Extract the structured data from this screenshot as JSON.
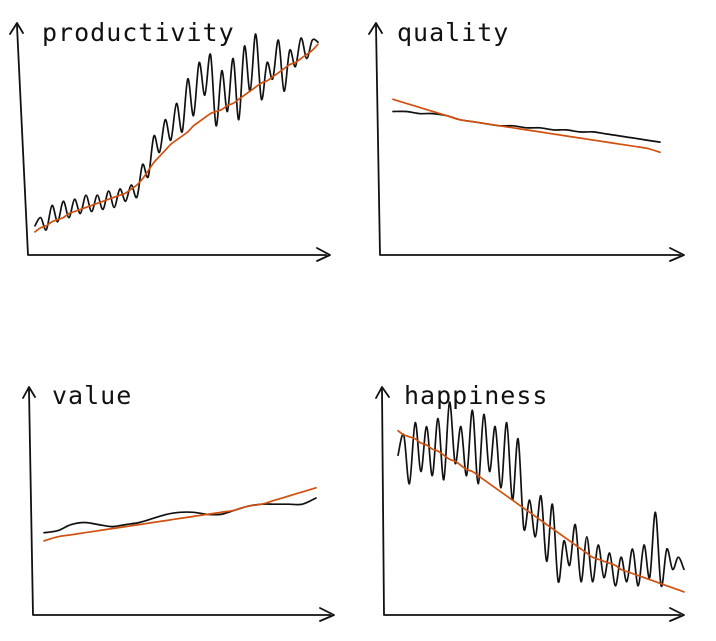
{
  "colors": {
    "ink": "#111111",
    "trend": "#D2500E",
    "background": "#ffffff"
  },
  "chart_data": [
    {
      "type": "line",
      "title": "productivity",
      "xlabel": "",
      "ylabel": "",
      "axes": "arrows, no ticks",
      "grid": false,
      "legend": "none",
      "ylim": [
        0,
        100
      ],
      "x": [
        0,
        2,
        4,
        6,
        8,
        10,
        12,
        14,
        16,
        18,
        20,
        22,
        24,
        26,
        28,
        30,
        32,
        34,
        36,
        38,
        40,
        42,
        44,
        46,
        48,
        50,
        52,
        54,
        56,
        58,
        60,
        62,
        64,
        66,
        68,
        70,
        72,
        74,
        76,
        78,
        80,
        82,
        84,
        86,
        88,
        90,
        92,
        94,
        96,
        98,
        100
      ],
      "series": [
        {
          "values": [
            6,
            10,
            4,
            16,
            8,
            18,
            10,
            19,
            12,
            21,
            13,
            21,
            14,
            23,
            15,
            24,
            18,
            26,
            20,
            36,
            30,
            50,
            42,
            58,
            48,
            66,
            52,
            78,
            60,
            86,
            70,
            90,
            55,
            82,
            62,
            88,
            58,
            94,
            72,
            100,
            68,
            86,
            78,
            97,
            72,
            92,
            84,
            98,
            88,
            97,
            96
          ]
        },
        {
          "values": [
            3,
            5,
            6,
            8,
            9,
            10,
            12,
            13,
            14,
            15,
            16,
            17,
            18,
            19,
            20,
            21,
            22,
            24,
            26,
            29,
            33,
            37,
            40,
            43,
            46,
            48,
            50,
            52,
            55,
            57,
            59,
            61,
            62,
            63,
            65,
            66,
            68,
            70,
            72,
            74,
            76,
            77,
            79,
            81,
            83,
            85,
            86,
            88,
            90,
            92,
            95
          ]
        }
      ]
    },
    {
      "type": "line",
      "title": "quality",
      "xlabel": "",
      "ylabel": "",
      "axes": "arrows, no ticks",
      "grid": false,
      "legend": "none",
      "ylim": [
        0,
        100
      ],
      "x": [
        0,
        5,
        10,
        15,
        20,
        25,
        30,
        35,
        40,
        45,
        50,
        55,
        60,
        65,
        70,
        75,
        80,
        85,
        90,
        95,
        100
      ],
      "series": [
        {
          "values": [
            62,
            62,
            61,
            61,
            60,
            58,
            57,
            56,
            55,
            55,
            54,
            54,
            53,
            53,
            52,
            52,
            51,
            50,
            49,
            48,
            47
          ]
        },
        {
          "values": [
            68,
            66,
            64,
            62,
            60,
            58,
            57,
            56,
            55,
            54,
            53,
            52,
            51,
            50,
            49,
            48,
            47,
            46,
            45,
            44,
            42
          ]
        }
      ]
    },
    {
      "type": "line",
      "title": "value",
      "xlabel": "",
      "ylabel": "",
      "axes": "arrows, no ticks",
      "grid": false,
      "legend": "none",
      "ylim": [
        0,
        100
      ],
      "x": [
        0,
        5,
        10,
        15,
        20,
        25,
        30,
        35,
        40,
        45,
        50,
        55,
        60,
        65,
        70,
        75,
        80,
        85,
        90,
        95,
        100
      ],
      "series": [
        {
          "values": [
            32,
            33,
            36,
            37,
            36,
            35,
            36,
            37,
            39,
            41,
            42,
            42,
            41,
            41,
            43,
            45,
            46,
            46,
            46,
            46,
            49
          ]
        },
        {
          "values": [
            28,
            30,
            31,
            32,
            33,
            34,
            35,
            36,
            37,
            38,
            39,
            40,
            41,
            42,
            43,
            45,
            46,
            48,
            50,
            52,
            54
          ]
        }
      ]
    },
    {
      "type": "line",
      "title": "happiness",
      "xlabel": "",
      "ylabel": "",
      "axes": "arrows, no ticks",
      "grid": false,
      "legend": "none",
      "ylim": [
        0,
        100
      ],
      "x": [
        0,
        2,
        4,
        6,
        8,
        10,
        12,
        14,
        16,
        18,
        20,
        22,
        24,
        26,
        28,
        30,
        32,
        34,
        36,
        38,
        40,
        42,
        44,
        46,
        48,
        50,
        52,
        54,
        56,
        58,
        60,
        62,
        64,
        66,
        68,
        70,
        72,
        74,
        76,
        78,
        80,
        82,
        84,
        86,
        88,
        90,
        92,
        94,
        96,
        98,
        100
      ],
      "series": [
        {
          "values": [
            70,
            80,
            56,
            86,
            62,
            84,
            60,
            88,
            58,
            96,
            66,
            84,
            60,
            92,
            56,
            90,
            62,
            84,
            54,
            86,
            48,
            78,
            34,
            48,
            30,
            50,
            18,
            46,
            8,
            28,
            16,
            36,
            8,
            30,
            8,
            26,
            10,
            22,
            6,
            20,
            8,
            24,
            6,
            26,
            10,
            42,
            6,
            24,
            14,
            20,
            14
          ]
        },
        {
          "values": [
            82,
            80,
            79,
            78,
            76,
            75,
            73,
            72,
            70,
            68,
            67,
            65,
            63,
            62,
            60,
            58,
            56,
            54,
            52,
            50,
            48,
            46,
            44,
            42,
            40,
            38,
            36,
            34,
            32,
            30,
            28,
            26,
            24,
            22,
            20,
            19,
            18,
            17,
            16,
            14,
            13,
            12,
            11,
            10,
            9,
            8,
            7,
            6,
            5,
            4,
            3
          ]
        }
      ]
    }
  ]
}
